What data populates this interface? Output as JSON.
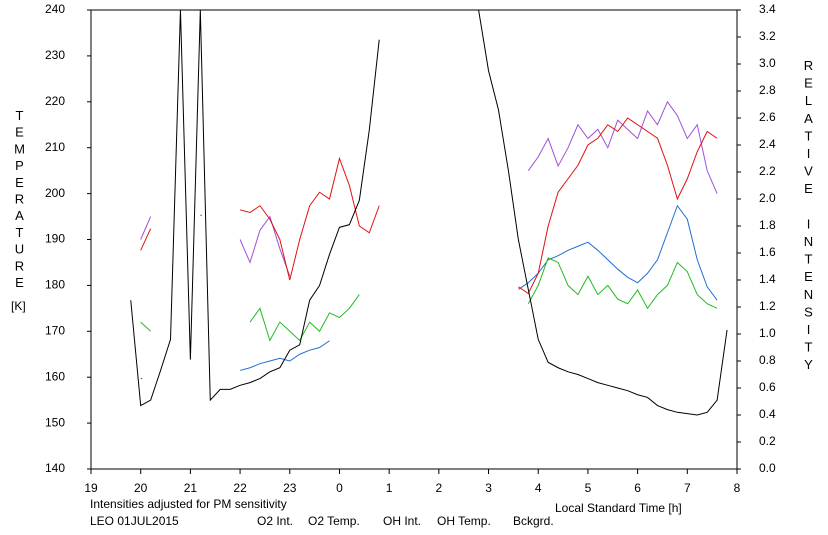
{
  "chart_data": {
    "type": "line",
    "x_label": "Local Standard Time [h]",
    "y_label": "TEMPERATURE",
    "y_unit": "[K]",
    "y2_label": "RELATIVE INTENSITY",
    "annotations": [
      "Intensities adjusted for PM sensitivity",
      "LEO 01JUL2015"
    ],
    "annotation_colors": [
      "#22bb22",
      "#000000"
    ],
    "xlim": [
      19,
      32
    ],
    "xticks": [
      19,
      20,
      21,
      22,
      23,
      {
        "value": 24,
        "label": "0"
      },
      {
        "value": 25,
        "label": "1"
      },
      {
        "value": 26,
        "label": "2"
      },
      {
        "value": 27,
        "label": "3"
      },
      {
        "value": 28,
        "label": "4"
      },
      {
        "value": 29,
        "label": "5"
      },
      {
        "value": 30,
        "label": "6"
      },
      {
        "value": 31,
        "label": "7"
      },
      {
        "value": 32,
        "label": "8"
      }
    ],
    "ylim": [
      140,
      240
    ],
    "yticks": [
      140,
      150,
      160,
      170,
      180,
      190,
      200,
      210,
      220,
      230,
      240
    ],
    "y2lim": [
      0,
      3.4
    ],
    "y2ticks": [
      {
        "value": 0,
        "label": "0.0"
      },
      0.2,
      0.4,
      0.6,
      0.8,
      {
        "value": 1,
        "label": "1.0"
      },
      1.2,
      1.4,
      1.6,
      1.8,
      {
        "value": 2,
        "label": "2.0"
      },
      2.2,
      2.4,
      2.6,
      2.8,
      {
        "value": 3,
        "label": "3.0"
      },
      3.2,
      3.4
    ],
    "x": [
      19.8,
      20,
      20.2,
      20.4,
      20.6,
      20.8,
      21,
      21.2,
      21.4,
      21.6,
      21.8,
      22,
      22.2,
      22.4,
      22.6,
      22.8,
      23,
      23.2,
      23.4,
      23.6,
      23.8,
      24,
      24.2,
      24.4,
      24.6,
      24.8,
      25,
      25.2,
      25.4,
      25.6,
      25.8,
      26,
      26.2,
      26.4,
      26.6,
      26.8,
      27,
      27.2,
      27.4,
      27.6,
      27.8,
      28,
      28.2,
      28.4,
      28.6,
      28.8,
      29,
      29.2,
      29.4,
      29.6,
      29.8,
      30,
      30.2,
      30.4,
      30.6,
      30.8,
      31,
      31.2,
      31.4,
      31.6,
      31.8
    ],
    "series": [
      {
        "name": "O2 Int.",
        "color": "#1f6fd0",
        "axis": "y2",
        "values": [
          null,
          0.67,
          null,
          null,
          null,
          null,
          null,
          null,
          null,
          null,
          null,
          0.73,
          0.75,
          0.78,
          0.8,
          0.82,
          0.8,
          0.85,
          0.88,
          0.9,
          0.95,
          null,
          null,
          null,
          null,
          null,
          null,
          null,
          null,
          null,
          null,
          null,
          null,
          null,
          null,
          null,
          null,
          null,
          null,
          1.33,
          1.38,
          1.45,
          1.55,
          1.58,
          1.62,
          1.65,
          1.68,
          1.62,
          1.55,
          1.48,
          1.42,
          1.38,
          1.45,
          1.55,
          1.75,
          1.95,
          1.85,
          1.55,
          1.35,
          1.25,
          null
        ]
      },
      {
        "name": "O2 Temp.",
        "color": "#a050d8",
        "values": [
          null,
          190,
          195,
          null,
          null,
          null,
          null,
          null,
          null,
          null,
          null,
          190,
          185,
          192,
          195,
          188,
          182,
          null,
          null,
          null,
          null,
          null,
          null,
          null,
          null,
          null,
          null,
          null,
          null,
          null,
          null,
          null,
          null,
          null,
          null,
          null,
          null,
          null,
          null,
          null,
          205,
          208,
          212,
          206,
          210,
          215,
          212,
          214,
          210,
          216,
          214,
          212,
          218,
          215,
          220,
          217,
          212,
          215,
          205,
          200,
          null
        ]
      },
      {
        "name": "OH Int.",
        "color": "#e01010",
        "axis": "y2",
        "values": [
          null,
          1.62,
          1.78,
          null,
          null,
          null,
          null,
          1.88,
          null,
          null,
          null,
          1.92,
          1.9,
          1.95,
          1.85,
          1.7,
          1.4,
          1.7,
          1.95,
          2.05,
          2.0,
          2.3,
          2.1,
          1.8,
          1.75,
          1.95,
          null,
          null,
          null,
          null,
          null,
          null,
          null,
          null,
          null,
          null,
          null,
          null,
          null,
          1.35,
          1.3,
          1.45,
          1.8,
          2.05,
          2.15,
          2.25,
          2.4,
          2.45,
          2.55,
          2.5,
          2.6,
          2.55,
          2.5,
          2.45,
          2.25,
          2.0,
          2.15,
          2.35,
          2.5,
          2.45,
          null
        ]
      },
      {
        "name": "OH Temp.",
        "color": "#22bb22",
        "values": [
          null,
          172,
          170,
          null,
          null,
          null,
          null,
          null,
          null,
          null,
          null,
          null,
          172,
          175,
          168,
          172,
          170,
          168,
          172,
          170,
          174,
          173,
          175,
          178,
          null,
          null,
          null,
          null,
          null,
          null,
          null,
          null,
          null,
          null,
          null,
          null,
          null,
          null,
          null,
          null,
          176,
          180,
          186,
          185,
          180,
          178,
          182,
          178,
          180,
          177,
          176,
          179,
          175,
          178,
          180,
          185,
          183,
          178,
          176,
          175,
          null
        ]
      },
      {
        "name": "Bckgrd.",
        "color": "#000000",
        "axis": "y2",
        "values": [
          1.25,
          0.47,
          0.51,
          0.73,
          0.96,
          3.4,
          0.81,
          3.4,
          0.51,
          0.59,
          0.59,
          0.62,
          0.64,
          0.67,
          0.72,
          0.75,
          0.88,
          0.92,
          1.25,
          1.36,
          1.59,
          1.79,
          1.81,
          1.99,
          2.51,
          3.18,
          null,
          null,
          null,
          null,
          null,
          null,
          null,
          null,
          null,
          3.4,
          2.95,
          2.66,
          2.21,
          1.7,
          1.33,
          0.96,
          0.79,
          0.75,
          0.72,
          0.7,
          0.67,
          0.64,
          0.62,
          0.6,
          0.58,
          0.55,
          0.53,
          0.47,
          0.44,
          0.42,
          0.41,
          0.4,
          0.42,
          0.51,
          1.03
        ]
      }
    ]
  }
}
